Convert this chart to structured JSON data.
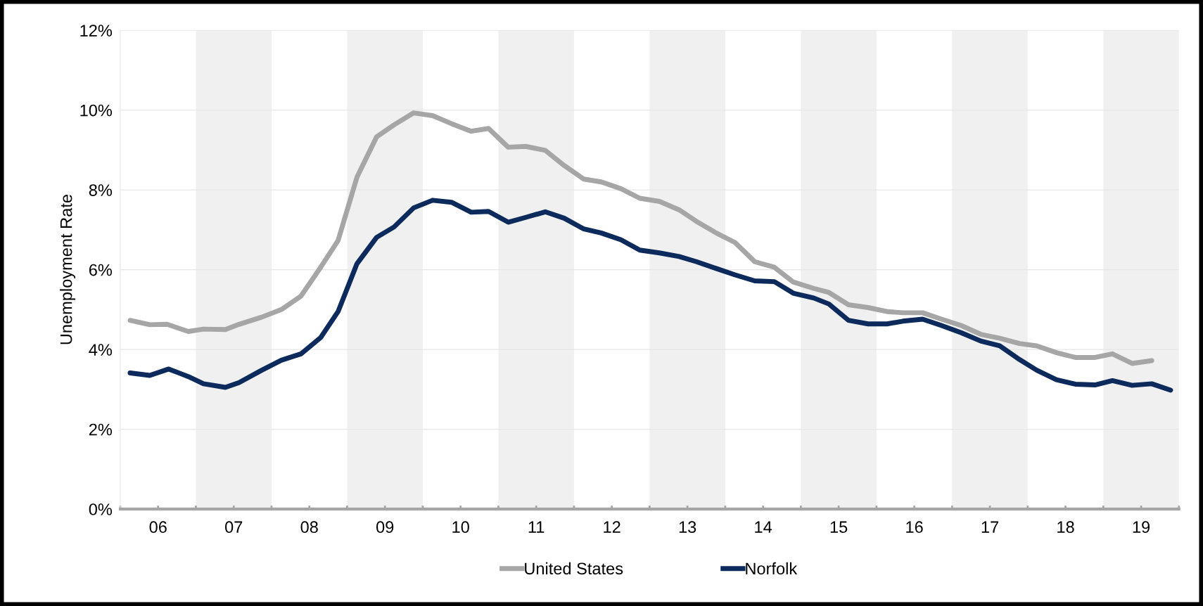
{
  "chart_data": {
    "type": "line",
    "ylabel": "Unemployment Rate",
    "xlim": [
      5.5,
      19.5
    ],
    "xticks": [
      {
        "value": 5.5,
        "label": null
      },
      {
        "value": 6,
        "label": "06"
      },
      {
        "value": 6.5,
        "label": null
      },
      {
        "value": 7,
        "label": "07"
      },
      {
        "value": 7.5,
        "label": null
      },
      {
        "value": 8,
        "label": "08"
      },
      {
        "value": 8.5,
        "label": null
      },
      {
        "value": 9,
        "label": "09"
      },
      {
        "value": 9.5,
        "label": null
      },
      {
        "value": 10,
        "label": "10"
      },
      {
        "value": 10.5,
        "label": null
      },
      {
        "value": 11,
        "label": "11"
      },
      {
        "value": 11.5,
        "label": null
      },
      {
        "value": 12,
        "label": "12"
      },
      {
        "value": 12.5,
        "label": null
      },
      {
        "value": 13,
        "label": "13"
      },
      {
        "value": 13.5,
        "label": null
      },
      {
        "value": 14,
        "label": "14"
      },
      {
        "value": 14.5,
        "label": null
      },
      {
        "value": 15,
        "label": "15"
      },
      {
        "value": 15.5,
        "label": null
      },
      {
        "value": 16,
        "label": "16"
      },
      {
        "value": 16.5,
        "label": null
      },
      {
        "value": 17,
        "label": "17"
      },
      {
        "value": 17.5,
        "label": null
      },
      {
        "value": 18,
        "label": "18"
      },
      {
        "value": 18.5,
        "label": null
      },
      {
        "value": 19,
        "label": "19"
      },
      {
        "value": 19.5,
        "label": null
      }
    ],
    "ylim": [
      0,
      12
    ],
    "yticks": [
      {
        "value": 0,
        "label": "0%"
      },
      {
        "value": 2,
        "label": "2%"
      },
      {
        "value": 4,
        "label": "4%"
      },
      {
        "value": 6,
        "label": "6%"
      },
      {
        "value": 8,
        "label": "8%"
      },
      {
        "value": 10,
        "label": "10%"
      },
      {
        "value": 12,
        "label": "12%"
      }
    ],
    "grid": "y",
    "legend": "bottom",
    "marker": "none",
    "line_style": "solid",
    "bands": [
      {
        "axis": "x",
        "from": 6.5,
        "to": 7.5,
        "color": "#f0f0f0"
      },
      {
        "axis": "x",
        "from": 8.5,
        "to": 9.5,
        "color": "#f0f0f0"
      },
      {
        "axis": "x",
        "from": 10.5,
        "to": 11.5,
        "color": "#f0f0f0"
      },
      {
        "axis": "x",
        "from": 12.5,
        "to": 13.5,
        "color": "#f0f0f0"
      },
      {
        "axis": "x",
        "from": 14.5,
        "to": 15.5,
        "color": "#f0f0f0"
      },
      {
        "axis": "x",
        "from": 16.5,
        "to": 17.5,
        "color": "#f0f0f0"
      },
      {
        "axis": "x",
        "from": 18.5,
        "to": 19.5,
        "color": "#f0f0f0"
      }
    ],
    "series": [
      {
        "name": "United States",
        "color": "#a6a6a6",
        "x": [
          5.63,
          5.89,
          6.12,
          6.4,
          6.6,
          6.89,
          7.07,
          7.37,
          7.63,
          7.89,
          8.15,
          8.38,
          8.63,
          8.89,
          9.12,
          9.38,
          9.63,
          9.88,
          10.14,
          10.37,
          10.63,
          10.86,
          11.12,
          11.37,
          11.63,
          11.86,
          12.12,
          12.37,
          12.63,
          12.89,
          13.12,
          13.38,
          13.63,
          13.89,
          14.15,
          14.4,
          14.67,
          14.87,
          15.13,
          15.39,
          15.64,
          15.85,
          16.11,
          16.36,
          16.62,
          16.88,
          17.13,
          17.39,
          17.62,
          17.88,
          18.13,
          18.39,
          18.62,
          18.88,
          19.14
        ],
        "values": [
          4.73,
          4.62,
          4.63,
          4.45,
          4.51,
          4.5,
          4.63,
          4.81,
          5.0,
          5.34,
          6.06,
          6.73,
          8.32,
          9.33,
          9.63,
          9.93,
          9.86,
          9.66,
          9.47,
          9.54,
          9.07,
          9.09,
          8.99,
          8.61,
          8.27,
          8.2,
          8.03,
          7.79,
          7.71,
          7.5,
          7.21,
          6.92,
          6.68,
          6.2,
          6.06,
          5.69,
          5.53,
          5.43,
          5.12,
          5.05,
          4.95,
          4.92,
          4.92,
          4.76,
          4.6,
          4.38,
          4.28,
          4.15,
          4.09,
          3.92,
          3.8,
          3.8,
          3.89,
          3.65,
          3.72
        ]
      },
      {
        "name": "Norfolk",
        "color": "#0c2a5b",
        "x": [
          5.63,
          5.89,
          6.14,
          6.4,
          6.6,
          6.89,
          7.07,
          7.37,
          7.63,
          7.89,
          8.15,
          8.38,
          8.63,
          8.89,
          9.12,
          9.38,
          9.63,
          9.88,
          10.14,
          10.37,
          10.63,
          10.86,
          11.12,
          11.37,
          11.63,
          11.86,
          12.12,
          12.37,
          12.63,
          12.89,
          13.12,
          13.38,
          13.63,
          13.89,
          14.15,
          14.4,
          14.67,
          14.87,
          15.13,
          15.39,
          15.64,
          15.85,
          16.11,
          16.36,
          16.62,
          16.88,
          17.13,
          17.39,
          17.62,
          17.88,
          18.13,
          18.39,
          18.62,
          18.88,
          19.14,
          19.39
        ],
        "values": [
          3.41,
          3.35,
          3.51,
          3.32,
          3.14,
          3.05,
          3.17,
          3.48,
          3.73,
          3.89,
          4.3,
          4.95,
          6.15,
          6.81,
          7.07,
          7.55,
          7.74,
          7.69,
          7.44,
          7.46,
          7.19,
          7.31,
          7.45,
          7.29,
          7.02,
          6.92,
          6.75,
          6.49,
          6.42,
          6.33,
          6.2,
          6.03,
          5.87,
          5.72,
          5.7,
          5.41,
          5.29,
          5.14,
          4.73,
          4.64,
          4.64,
          4.71,
          4.76,
          4.6,
          4.42,
          4.21,
          4.09,
          3.75,
          3.48,
          3.24,
          3.13,
          3.11,
          3.22,
          3.1,
          3.14,
          2.98
        ]
      }
    ]
  }
}
